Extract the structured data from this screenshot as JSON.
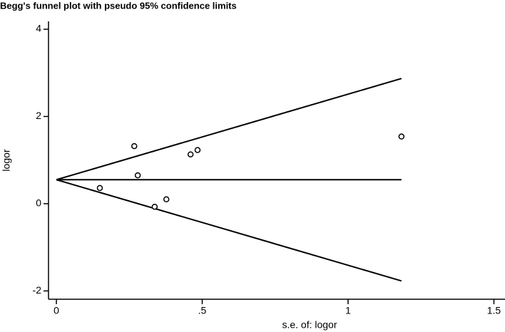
{
  "chart_data": {
    "type": "scatter",
    "title": "Begg's funnel plot with pseudo 95% confidence limits",
    "x_label": "s.e. of: logor",
    "y_label": "logor",
    "series": [
      {
        "color": "#000000",
        "x": [
          0.149,
          0.267,
          0.279,
          0.337,
          0.377,
          0.46,
          0.484,
          1.183
        ],
        "values": [
          0.36,
          1.32,
          0.65,
          -0.07,
          0.1,
          1.13,
          1.23,
          1.54
        ]
      }
    ],
    "lines": [
      {
        "x": [
          0,
          1.183
        ],
        "values": [
          0.55,
          0.55
        ]
      },
      {
        "x": [
          0,
          1.183
        ],
        "values": [
          0.55,
          2.87
        ]
      },
      {
        "x": [
          0,
          1.183
        ],
        "values": [
          0.55,
          -1.77
        ]
      }
    ],
    "xlim": [
      -0.027,
      1.538
    ],
    "ylim": [
      -2.19,
      4.18
    ],
    "xticks": [
      0,
      {
        "value": 0.5,
        "label": ".5"
      },
      1,
      1.5
    ],
    "yticks": [
      -2,
      0,
      2,
      4
    ]
  }
}
